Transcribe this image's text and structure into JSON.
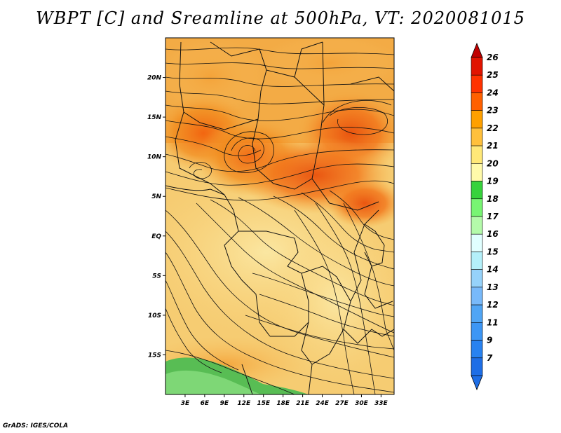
{
  "title": "WBPT [C] and Sreamline at 500hPa, VT: 2020081015",
  "credit": "GrADS: IGES/COLA",
  "map": {
    "lat_range": [
      -20,
      25
    ],
    "lon_range": [
      0,
      35
    ],
    "lat_ticks": [
      {
        "value": 20,
        "label": "20N"
      },
      {
        "value": 15,
        "label": "15N"
      },
      {
        "value": 10,
        "label": "10N"
      },
      {
        "value": 5,
        "label": "5N"
      },
      {
        "value": 0,
        "label": "EQ"
      },
      {
        "value": -5,
        "label": "5S"
      },
      {
        "value": -10,
        "label": "10S"
      },
      {
        "value": -15,
        "label": "15S"
      }
    ],
    "lon_ticks": [
      {
        "value": 3,
        "label": "3E"
      },
      {
        "value": 6,
        "label": "6E"
      },
      {
        "value": 9,
        "label": "9E"
      },
      {
        "value": 12,
        "label": "12E"
      },
      {
        "value": 15,
        "label": "15E"
      },
      {
        "value": 18,
        "label": "18E"
      },
      {
        "value": 21,
        "label": "21E"
      },
      {
        "value": 24,
        "label": "24E"
      },
      {
        "value": 27,
        "label": "27E"
      },
      {
        "value": 30,
        "label": "30E"
      },
      {
        "value": 33,
        "label": "33E"
      }
    ]
  },
  "colorbar": {
    "levels": [
      {
        "label": "7",
        "color": "#1e6ee6"
      },
      {
        "label": "9",
        "color": "#2882f0"
      },
      {
        "label": "11",
        "color": "#3c96f5"
      },
      {
        "label": "12",
        "color": "#50a5f5"
      },
      {
        "label": "13",
        "color": "#78b9fa"
      },
      {
        "label": "14",
        "color": "#96d2fa"
      },
      {
        "label": "15",
        "color": "#b4f0fa"
      },
      {
        "label": "16",
        "color": "#e1ffff"
      },
      {
        "label": "17",
        "color": "#b4faaa"
      },
      {
        "label": "18",
        "color": "#78f573"
      },
      {
        "label": "19",
        "color": "#37d23c"
      },
      {
        "label": "20",
        "color": "#fffaaa"
      },
      {
        "label": "21",
        "color": "#ffe878"
      },
      {
        "label": "22",
        "color": "#ffc03c"
      },
      {
        "label": "23",
        "color": "#ffa000"
      },
      {
        "label": "24",
        "color": "#ff6000"
      },
      {
        "label": "25",
        "color": "#ff3200"
      },
      {
        "label": "26",
        "color": "#e11400"
      }
    ],
    "top_color": "#c00000",
    "bottom_color": "#1e6ee6"
  }
}
